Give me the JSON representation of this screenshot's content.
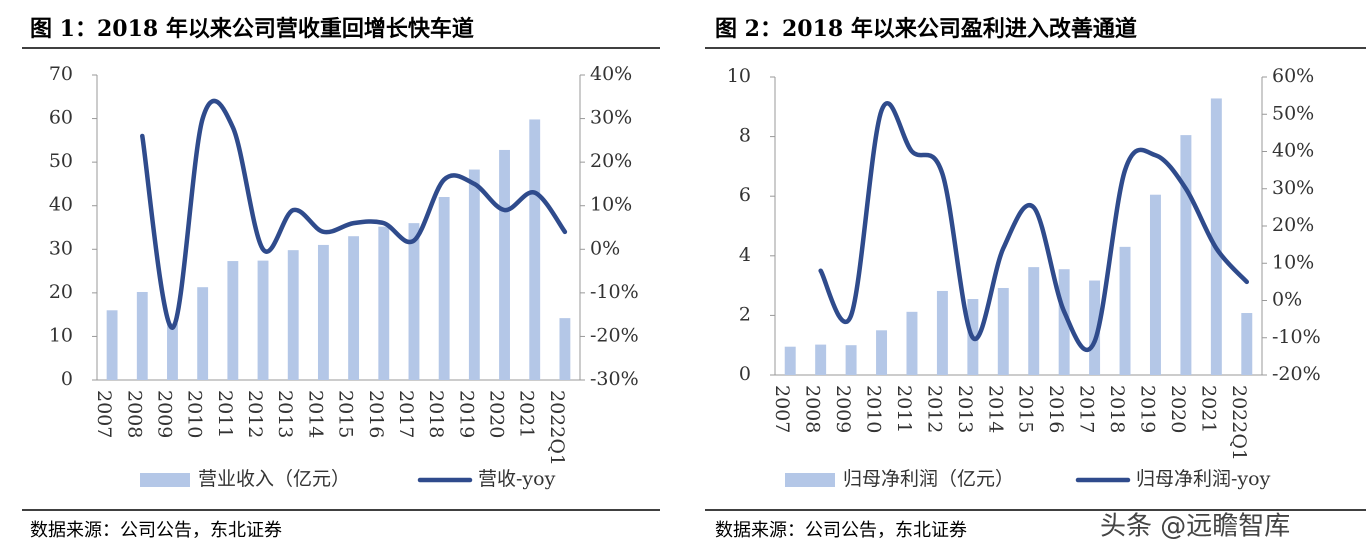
{
  "chart_data": [
    {
      "type": "bar-line",
      "title": "图 1：2018 年以来公司营收重回增长快车道",
      "source": "数据来源：公司公告，东北证券",
      "categories": [
        "2007",
        "2008",
        "2009",
        "2010",
        "2011",
        "2012",
        "2013",
        "2014",
        "2015",
        "2016",
        "2017",
        "2018",
        "2019",
        "2020",
        "2021",
        "2022Q1"
      ],
      "series": [
        {
          "name": "营业收入（亿元）",
          "type": "bar",
          "color": "#b4c7e7",
          "values": [
            16,
            20.2,
            13,
            21.3,
            27.3,
            27.4,
            29.8,
            31,
            33,
            35.2,
            36,
            42,
            48.3,
            52.8,
            59.8,
            14.2
          ]
        },
        {
          "name": "营收-yoy",
          "type": "line",
          "axis": "y2",
          "color": "#2f4b8c",
          "values": [
            null,
            26,
            -18,
            30,
            28,
            0,
            9,
            4,
            6,
            6,
            2,
            16,
            15,
            9,
            13,
            4
          ]
        }
      ],
      "ylim": [
        0,
        70
      ],
      "yticks": [
        0,
        10,
        20,
        30,
        40,
        50,
        60,
        70
      ],
      "y2lim": [
        -30,
        40
      ],
      "y2ticks": [
        {
          "value": -30,
          "label": "-30%"
        },
        {
          "value": -20,
          "label": "-20%"
        },
        {
          "value": -10,
          "label": "-10%"
        },
        {
          "value": 0,
          "label": "0%"
        },
        {
          "value": 10,
          "label": "10%"
        },
        {
          "value": 20,
          "label": "20%"
        },
        {
          "value": 30,
          "label": "30%"
        },
        {
          "value": 40,
          "label": "40%"
        }
      ],
      "legend": "bottom"
    },
    {
      "type": "bar-line",
      "title": "图 2：2018 年以来公司盈利进入改善通道",
      "source": "数据来源：公司公告，东北证券",
      "categories": [
        "2007",
        "2008",
        "2009",
        "2010",
        "2011",
        "2012",
        "2013",
        "2014",
        "2015",
        "2016",
        "2017",
        "2018",
        "2019",
        "2020",
        "2021",
        "2022Q1"
      ],
      "series": [
        {
          "name": "归母净利润（亿元）",
          "type": "bar",
          "color": "#b4c7e7",
          "values": [
            0.95,
            1.02,
            1.0,
            1.5,
            2.12,
            2.82,
            2.55,
            2.92,
            3.62,
            3.55,
            3.17,
            4.3,
            6.05,
            8.05,
            9.28,
            2.08
          ]
        },
        {
          "name": "归母净利润-yoy",
          "type": "line",
          "axis": "y2",
          "color": "#2f4b8c",
          "values": [
            null,
            8,
            -4,
            51,
            40,
            34,
            -10,
            14,
            25,
            -3,
            -11,
            35,
            39,
            30,
            14,
            5
          ]
        }
      ],
      "ylim": [
        0,
        10
      ],
      "yticks": [
        0,
        2,
        4,
        6,
        8,
        10
      ],
      "y2lim": [
        -20,
        60
      ],
      "y2ticks": [
        {
          "value": -20,
          "label": "-20%"
        },
        {
          "value": -10,
          "label": "-10%"
        },
        {
          "value": 0,
          "label": "0%"
        },
        {
          "value": 10,
          "label": "10%"
        },
        {
          "value": 20,
          "label": "20%"
        },
        {
          "value": 30,
          "label": "30%"
        },
        {
          "value": 40,
          "label": "40%"
        },
        {
          "value": 50,
          "label": "50%"
        },
        {
          "value": 60,
          "label": "60%"
        }
      ],
      "legend": "bottom"
    }
  ],
  "watermark": "头条 @远瞻智库"
}
